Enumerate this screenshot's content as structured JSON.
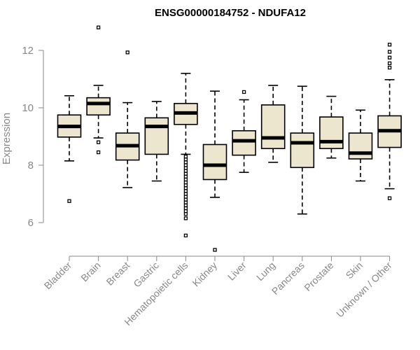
{
  "chart_data": {
    "type": "boxplot",
    "title": "ENSG00000184752 - NDUFA12",
    "ylabel": "Expression",
    "xlabel": "",
    "ylim": [
      4.8,
      13.2
    ],
    "yticks": [
      6,
      8,
      10,
      12
    ],
    "categories": [
      "Bladder",
      "Brain",
      "Breast",
      "Gastric",
      "Hematopoietic cells",
      "Kidney",
      "Liver",
      "Lung",
      "Pancreas",
      "Prostate",
      "Skin",
      "Unknown / Other"
    ],
    "boxes": [
      {
        "category": "Bladder",
        "whisker_low": 8.15,
        "q1": 8.98,
        "median": 9.35,
        "q3": 9.75,
        "whisker_high": 10.42,
        "outliers": [
          6.75
        ]
      },
      {
        "category": "Brain",
        "whisker_low": 8.95,
        "q1": 9.75,
        "median": 10.15,
        "q3": 10.35,
        "whisker_high": 10.78,
        "outliers": [
          12.8,
          8.8,
          8.45
        ]
      },
      {
        "category": "Breast",
        "whisker_low": 7.22,
        "q1": 8.18,
        "median": 8.68,
        "q3": 9.12,
        "whisker_high": 10.18,
        "outliers": [
          11.93
        ]
      },
      {
        "category": "Gastric",
        "whisker_low": 7.45,
        "q1": 8.38,
        "median": 9.35,
        "q3": 9.65,
        "whisker_high": 10.22,
        "outliers": []
      },
      {
        "category": "Hematopoietic cells",
        "whisker_low": 8.38,
        "q1": 9.42,
        "median": 9.82,
        "q3": 10.15,
        "whisker_high": 11.2,
        "outliers": [
          8.3,
          8.2,
          8.1,
          8.0,
          7.9,
          7.8,
          7.7,
          7.6,
          7.5,
          7.4,
          7.3,
          7.2,
          7.1,
          7.0,
          6.9,
          6.8,
          6.7,
          6.6,
          6.5,
          6.4,
          6.3,
          6.15,
          5.55
        ]
      },
      {
        "category": "Kidney",
        "whisker_low": 6.88,
        "q1": 7.5,
        "median": 8.0,
        "q3": 8.72,
        "whisker_high": 10.58,
        "outliers": [
          5.05
        ]
      },
      {
        "category": "Liver",
        "whisker_low": 7.75,
        "q1": 8.35,
        "median": 8.85,
        "q3": 9.2,
        "whisker_high": 10.28,
        "outliers": [
          10.55
        ]
      },
      {
        "category": "Lung",
        "whisker_low": 8.1,
        "q1": 8.58,
        "median": 8.95,
        "q3": 10.1,
        "whisker_high": 10.78,
        "outliers": []
      },
      {
        "category": "Pancreas",
        "whisker_low": 6.3,
        "q1": 7.92,
        "median": 8.78,
        "q3": 9.12,
        "whisker_high": 10.75,
        "outliers": []
      },
      {
        "category": "Prostate",
        "whisker_low": 8.25,
        "q1": 8.58,
        "median": 8.82,
        "q3": 9.68,
        "whisker_high": 10.4,
        "outliers": []
      },
      {
        "category": "Skin",
        "whisker_low": 7.45,
        "q1": 8.22,
        "median": 8.42,
        "q3": 9.12,
        "whisker_high": 9.92,
        "outliers": []
      },
      {
        "category": "Unknown / Other",
        "whisker_low": 7.18,
        "q1": 8.62,
        "median": 9.2,
        "q3": 9.72,
        "whisker_high": 10.98,
        "outliers": [
          12.2,
          11.95,
          11.75,
          11.55,
          11.4,
          6.85
        ]
      }
    ],
    "grid": false,
    "legend": "none"
  }
}
